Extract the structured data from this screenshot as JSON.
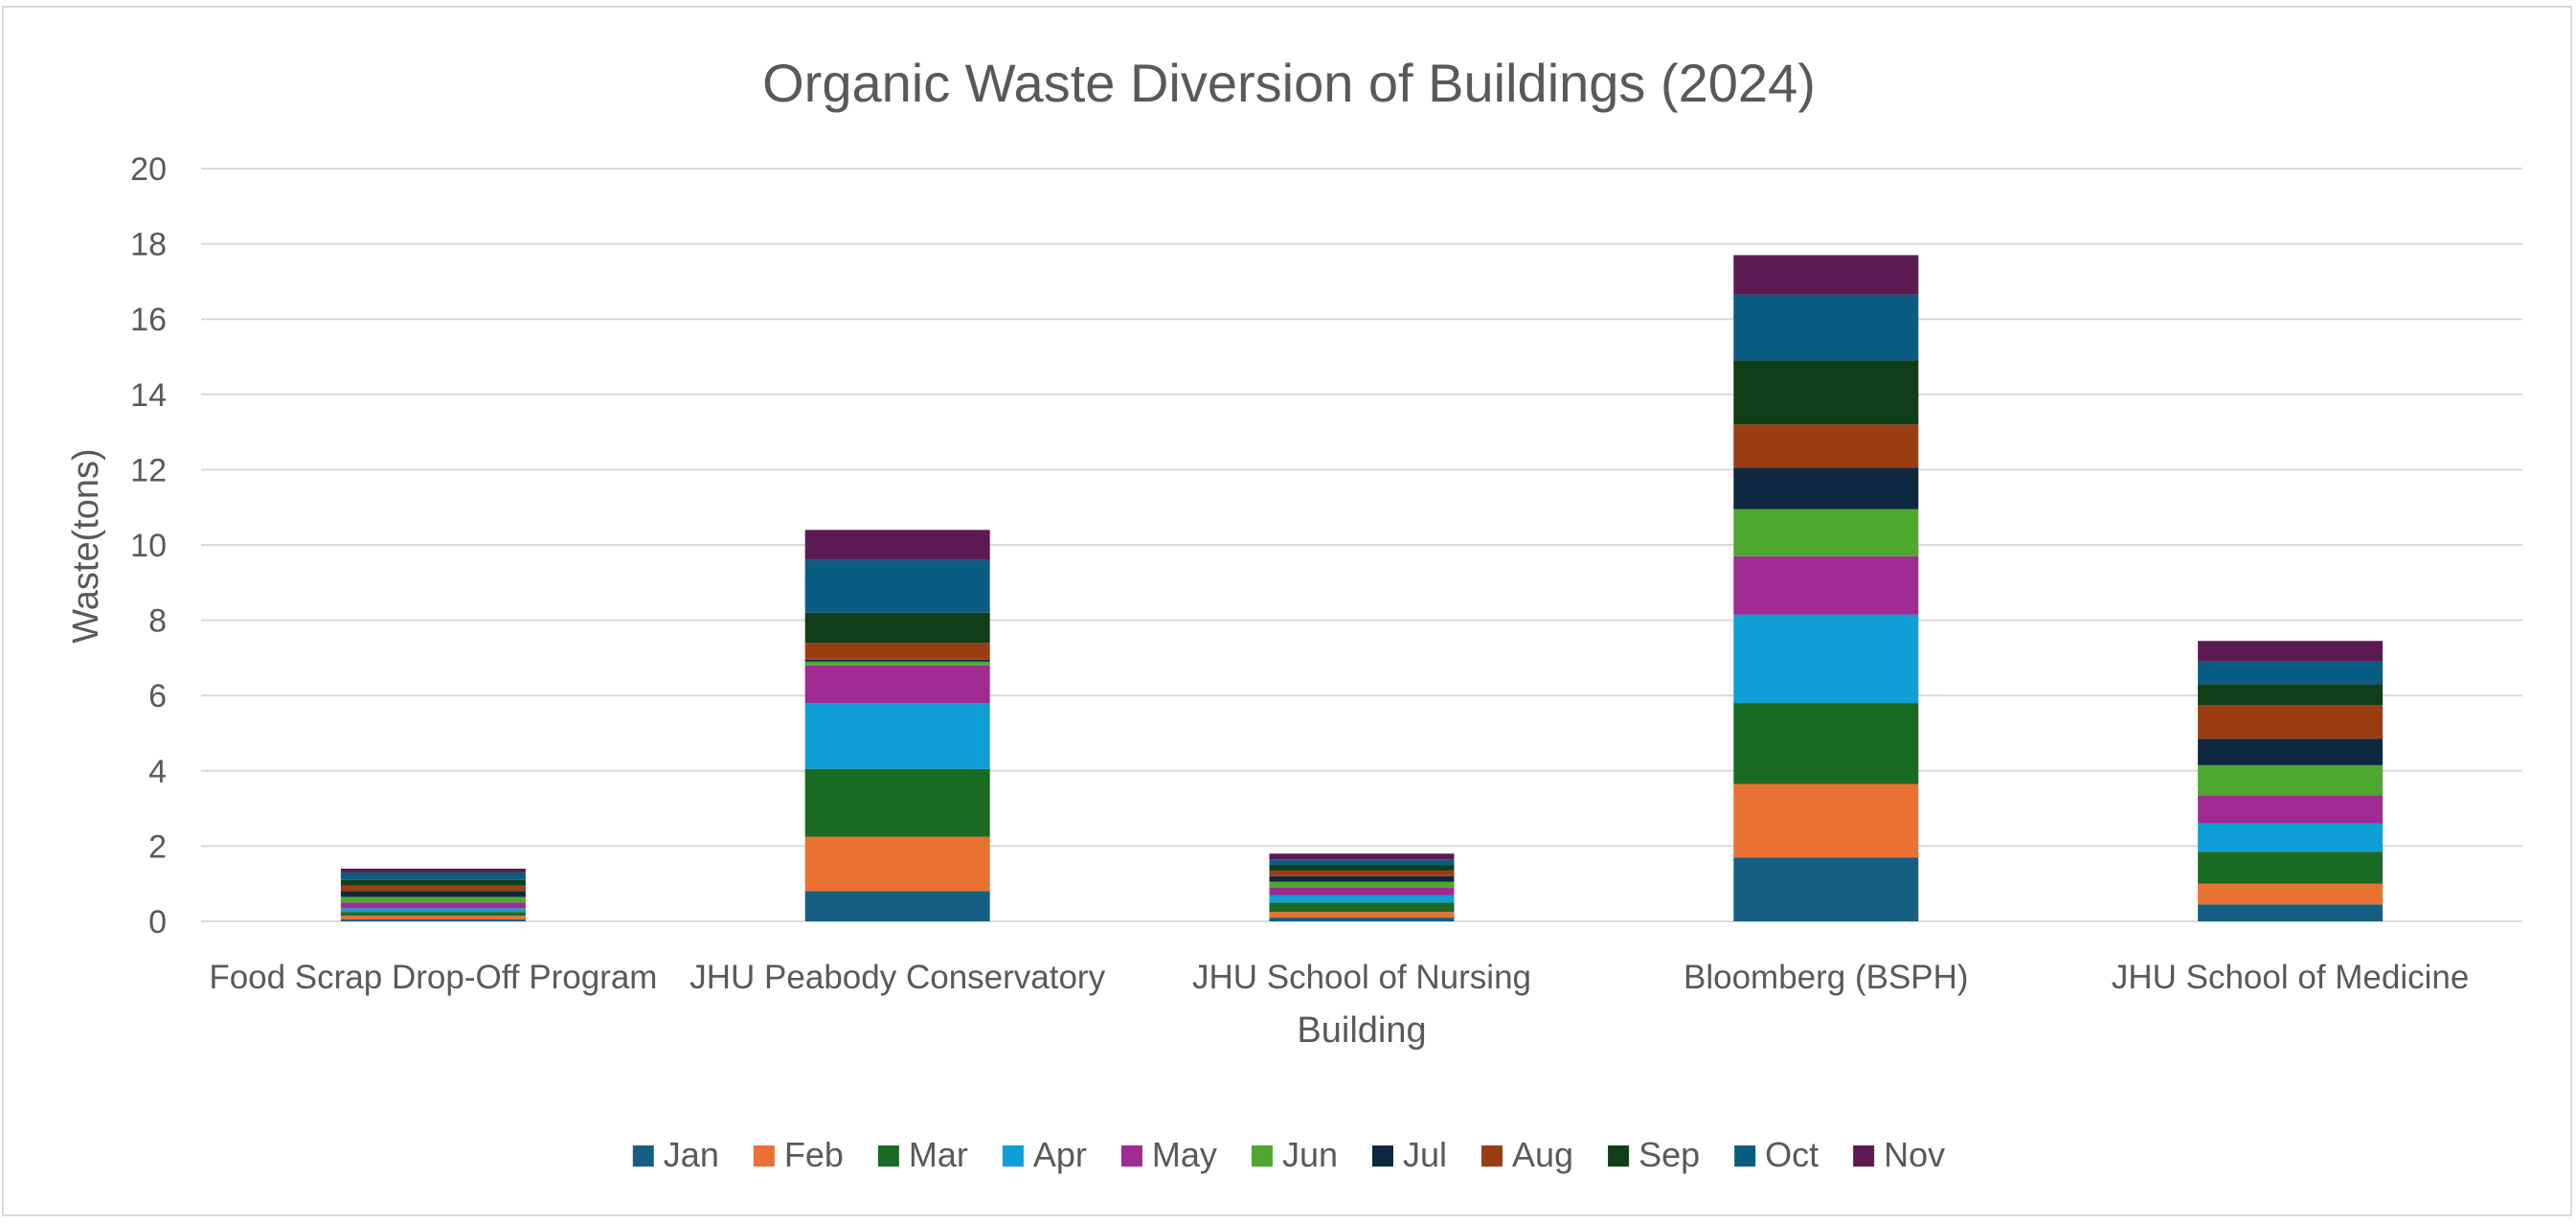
{
  "chart_data": {
    "type": "bar",
    "stacked": true,
    "title": "Organic Waste Diversion of Buildings (2024)",
    "xlabel": "Building",
    "ylabel": "Waste(tons)",
    "ylim": [
      0,
      20
    ],
    "yticks": [
      0,
      2,
      4,
      6,
      8,
      10,
      12,
      14,
      16,
      18,
      20
    ],
    "grid": true,
    "legend_position": "bottom",
    "categories": [
      "Food Scrap Drop-Off Program",
      "JHU Peabody Conservatory",
      "JHU School of Nursing",
      "Bloomberg (BSPH)",
      "JHU School of Medicine"
    ],
    "series": [
      {
        "name": "Jan",
        "color": "#156082",
        "values": [
          0.05,
          0.8,
          0.1,
          1.7,
          0.45
        ]
      },
      {
        "name": "Feb",
        "color": "#E97132",
        "values": [
          0.1,
          1.45,
          0.15,
          1.95,
          0.55
        ]
      },
      {
        "name": "Mar",
        "color": "#196B24",
        "values": [
          0.1,
          1.8,
          0.25,
          2.15,
          0.85
        ]
      },
      {
        "name": "Apr",
        "color": "#0F9ED5",
        "values": [
          0.1,
          1.75,
          0.2,
          2.35,
          0.75
        ]
      },
      {
        "name": "May",
        "color": "#A02B93",
        "values": [
          0.15,
          1.0,
          0.2,
          1.55,
          0.75
        ]
      },
      {
        "name": "Jun",
        "color": "#4EA72E",
        "values": [
          0.15,
          0.1,
          0.15,
          1.25,
          0.8
        ]
      },
      {
        "name": "Jul",
        "color": "#0E2841",
        "values": [
          0.15,
          0.05,
          0.15,
          1.1,
          0.7
        ]
      },
      {
        "name": "Aug",
        "color": "#9B3D12",
        "values": [
          0.15,
          0.45,
          0.15,
          1.15,
          0.9
        ]
      },
      {
        "name": "Sep",
        "color": "#0F3E18",
        "values": [
          0.15,
          0.8,
          0.15,
          1.7,
          0.55
        ]
      },
      {
        "name": "Oct",
        "color": "#0A5D82",
        "values": [
          0.2,
          1.4,
          0.15,
          1.75,
          0.6
        ]
      },
      {
        "name": "Nov",
        "color": "#5B1B52",
        "values": [
          0.1,
          0.8,
          0.15,
          1.05,
          0.55
        ]
      }
    ]
  }
}
